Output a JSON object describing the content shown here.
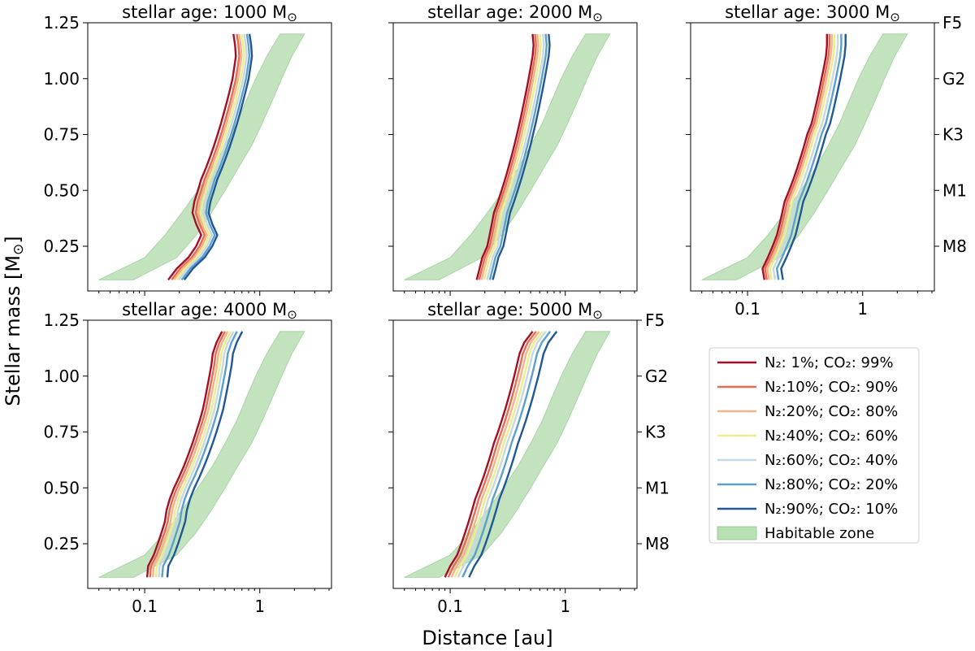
{
  "chart_data": {
    "type": "line",
    "figure": {
      "xlabel": "Distance [au]",
      "ylabel": "Stellar mass [M",
      "ylabel_sub": "⊙",
      "ylabel_close": "]",
      "xscale": "log",
      "xlim": [
        0.032,
        4.2
      ],
      "ylim": [
        0.05,
        1.25
      ],
      "x_ticks": [
        {
          "value": 0.1,
          "label": "0.1"
        },
        {
          "value": 1,
          "label": "1"
        }
      ],
      "y_ticks": [
        {
          "value": 0.25,
          "label": "0.25"
        },
        {
          "value": 0.5,
          "label": "0.50"
        },
        {
          "value": 0.75,
          "label": "0.75"
        },
        {
          "value": 1.0,
          "label": "1.00"
        },
        {
          "value": 1.25,
          "label": "1.25"
        }
      ],
      "spectral_ticks": [
        {
          "value": 1.25,
          "label": "F5"
        },
        {
          "value": 1.0,
          "label": "G2"
        },
        {
          "value": 0.75,
          "label": "K3"
        },
        {
          "value": 0.5,
          "label": "M1"
        },
        {
          "value": 0.25,
          "label": "M8"
        }
      ],
      "title_prefix": "stellar age: ",
      "title_unit": " M",
      "title_sub": "⊙"
    },
    "habitable_zone": {
      "name": "Habitable zone",
      "color": "#b9dfb5",
      "mass": [
        0.1,
        0.2,
        0.3,
        0.4,
        0.5,
        0.6,
        0.7,
        0.8,
        0.9,
        1.0,
        1.1,
        1.2
      ],
      "inner": [
        0.04,
        0.1,
        0.15,
        0.21,
        0.29,
        0.39,
        0.5,
        0.63,
        0.76,
        0.92,
        1.15,
        1.5
      ],
      "outer": [
        0.08,
        0.19,
        0.28,
        0.38,
        0.5,
        0.65,
        0.85,
        1.05,
        1.28,
        1.55,
        1.9,
        2.45
      ]
    },
    "series_styles": [
      {
        "name": "N₂: 1%; CO₂: 99%",
        "color": "#a50f25"
      },
      {
        "name": "N₂:10%; CO₂: 90%",
        "color": "#e56b51"
      },
      {
        "name": "N₂:20%; CO₂: 80%",
        "color": "#f6b38b"
      },
      {
        "name": "N₂:40%; CO₂: 60%",
        "color": "#ecee8c"
      },
      {
        "name": "N₂:60%; CO₂: 40%",
        "color": "#c6d8e3"
      },
      {
        "name": "N₂:80%; CO₂: 20%",
        "color": "#5d9fcb"
      },
      {
        "name": "N₂:90%; CO₂: 10%",
        "color": "#1f5797"
      }
    ],
    "panels": [
      {
        "age": "1000",
        "mass": [
          0.1,
          0.15,
          0.2,
          0.25,
          0.3,
          0.35,
          0.4,
          0.45,
          0.5,
          0.55,
          0.6,
          0.65,
          0.7,
          0.75,
          0.8,
          0.85,
          0.9,
          0.95,
          1.0,
          1.05,
          1.1,
          1.15,
          1.2
        ],
        "base": [
          0.16,
          0.19,
          0.24,
          0.28,
          0.31,
          0.28,
          0.26,
          0.27,
          0.29,
          0.31,
          0.34,
          0.37,
          0.4,
          0.43,
          0.46,
          0.49,
          0.52,
          0.55,
          0.58,
          0.6,
          0.62,
          0.61,
          0.59
        ],
        "ratios": [
          1.0,
          1.07,
          1.12,
          1.18,
          1.24,
          1.31,
          1.38
        ]
      },
      {
        "age": "2000",
        "mass": [
          0.1,
          0.15,
          0.2,
          0.25,
          0.3,
          0.35,
          0.4,
          0.45,
          0.5,
          0.55,
          0.6,
          0.65,
          0.7,
          0.75,
          0.8,
          0.85,
          0.9,
          0.95,
          1.0,
          1.05,
          1.1,
          1.15,
          1.2
        ],
        "base": [
          0.17,
          0.18,
          0.19,
          0.21,
          0.22,
          0.23,
          0.24,
          0.26,
          0.28,
          0.3,
          0.32,
          0.34,
          0.36,
          0.38,
          0.4,
          0.42,
          0.44,
          0.46,
          0.48,
          0.5,
          0.52,
          0.53,
          0.52
        ],
        "ratios": [
          1.0,
          1.05,
          1.1,
          1.16,
          1.23,
          1.3,
          1.38
        ]
      },
      {
        "age": "3000",
        "mass": [
          0.1,
          0.15,
          0.2,
          0.25,
          0.3,
          0.35,
          0.4,
          0.45,
          0.5,
          0.55,
          0.6,
          0.65,
          0.7,
          0.75,
          0.8,
          0.85,
          0.9,
          0.95,
          1.0,
          1.05,
          1.1,
          1.15,
          1.2
        ],
        "base": [
          0.14,
          0.135,
          0.15,
          0.165,
          0.18,
          0.19,
          0.2,
          0.21,
          0.23,
          0.25,
          0.27,
          0.29,
          0.31,
          0.33,
          0.36,
          0.38,
          0.4,
          0.42,
          0.44,
          0.46,
          0.48,
          0.49,
          0.49
        ],
        "ratios": [
          1.0,
          1.05,
          1.1,
          1.16,
          1.24,
          1.33,
          1.45
        ]
      },
      {
        "age": "4000",
        "mass": [
          0.1,
          0.15,
          0.2,
          0.25,
          0.3,
          0.35,
          0.4,
          0.45,
          0.5,
          0.55,
          0.6,
          0.65,
          0.7,
          0.75,
          0.8,
          0.85,
          0.9,
          0.95,
          1.0,
          1.05,
          1.1,
          1.15,
          1.2
        ],
        "base": [
          0.105,
          0.107,
          0.12,
          0.13,
          0.14,
          0.15,
          0.155,
          0.165,
          0.18,
          0.2,
          0.22,
          0.24,
          0.26,
          0.28,
          0.3,
          0.32,
          0.335,
          0.35,
          0.365,
          0.38,
          0.39,
          0.42,
          0.47
        ],
        "ratios": [
          1.0,
          1.06,
          1.12,
          1.19,
          1.26,
          1.35,
          1.5
        ]
      },
      {
        "age": "5000",
        "mass": [
          0.1,
          0.15,
          0.2,
          0.25,
          0.3,
          0.35,
          0.4,
          0.45,
          0.5,
          0.55,
          0.6,
          0.65,
          0.7,
          0.75,
          0.8,
          0.85,
          0.9,
          0.95,
          1.0,
          1.05,
          1.1,
          1.15,
          1.2
        ],
        "base": [
          0.09,
          0.1,
          0.115,
          0.125,
          0.135,
          0.145,
          0.155,
          0.165,
          0.18,
          0.195,
          0.21,
          0.225,
          0.24,
          0.26,
          0.28,
          0.3,
          0.32,
          0.34,
          0.36,
          0.38,
          0.4,
          0.44,
          0.52
        ],
        "ratios": [
          1.0,
          1.07,
          1.14,
          1.22,
          1.3,
          1.42,
          1.62
        ]
      }
    ]
  }
}
